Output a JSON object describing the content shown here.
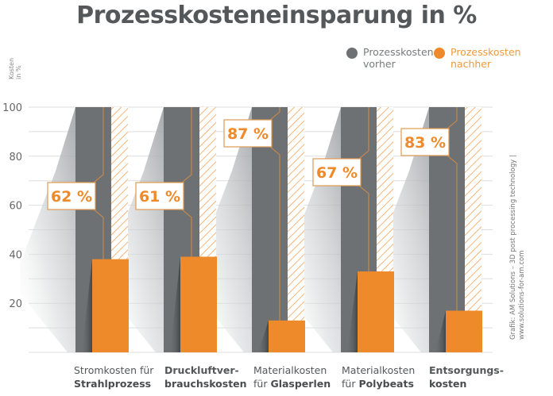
{
  "chart_data": {
    "type": "bar",
    "title": "Prozesskosteneinsparung in %",
    "ylabel": "Kosten in %",
    "ylabel_lines": [
      "Kosten",
      "in %"
    ],
    "ylim": [
      0,
      100
    ],
    "yticks": [
      20,
      40,
      60,
      80,
      100
    ],
    "grid": true,
    "legend_position": "top-right",
    "categories": [
      {
        "line1": "Stromkosten für",
        "line1_bold": false,
        "line2": "Strahlprozess",
        "line2_bold": true
      },
      {
        "line1": "Druckluftver-",
        "line1_bold": true,
        "line2": "brauchskosten",
        "line2_bold": true
      },
      {
        "line1": "Materialkosten",
        "line1_bold": false,
        "line2_pre": "für ",
        "line2": "Glasperlen",
        "line2_bold": true
      },
      {
        "line1": "Materialkosten",
        "line1_bold": false,
        "line2_pre": "für ",
        "line2": "Polybeats",
        "line2_bold": true
      },
      {
        "line1": "Entsorgungs-",
        "line1_bold": true,
        "line2": "kosten",
        "line2_bold": true
      }
    ],
    "series": [
      {
        "name": "Prozesskosten vorher",
        "color": "#6d7173",
        "values": [
          100,
          100,
          100,
          100,
          100
        ]
      },
      {
        "name": "Prozesskosten nachher",
        "color": "#ee8a2a",
        "values": [
          38,
          39,
          13,
          33,
          17
        ]
      }
    ],
    "savings_labels": [
      "62 %",
      "61 %",
      "87 %",
      "67 %",
      "83 %"
    ],
    "savings_values": [
      62,
      61,
      87,
      67,
      83
    ]
  },
  "legend": {
    "items": [
      {
        "label": "Prozesskosten\nvorher",
        "color": "#6d7173",
        "text_color": "#777b7d"
      },
      {
        "label": "Prozesskosten\nnachher",
        "color": "#ee8a2a",
        "text_color": "#ee9a3e"
      }
    ]
  },
  "credit": {
    "line1": "Grafik: AM Solutions – 3D post processing technology |",
    "line2": "www.solutions-for-am.com"
  },
  "colors": {
    "gray_bar": "#6d7173",
    "orange": "#ee8a2a",
    "grid": "#dcdcdc",
    "axis_text": "#666"
  }
}
